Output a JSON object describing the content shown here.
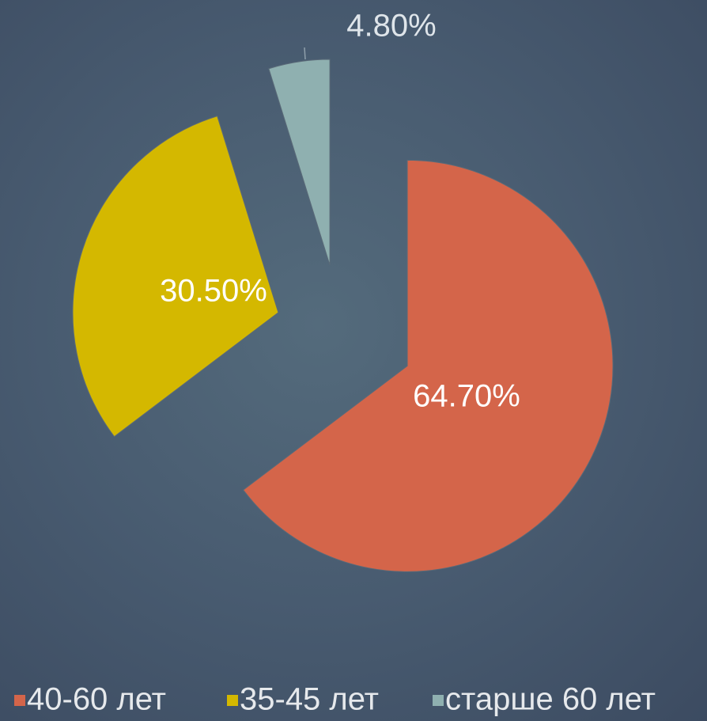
{
  "chart_data": {
    "type": "pie",
    "categories": [
      "40-60 лет",
      "35-45 лет",
      "старше 60 лет"
    ],
    "values": [
      64.7,
      30.5,
      4.8
    ],
    "value_labels": [
      "64.70%",
      "30.50%",
      "4.80%"
    ],
    "colors": [
      "#d4654a",
      "#d4b800",
      "#8fb0b0"
    ],
    "legend": "bottom"
  }
}
